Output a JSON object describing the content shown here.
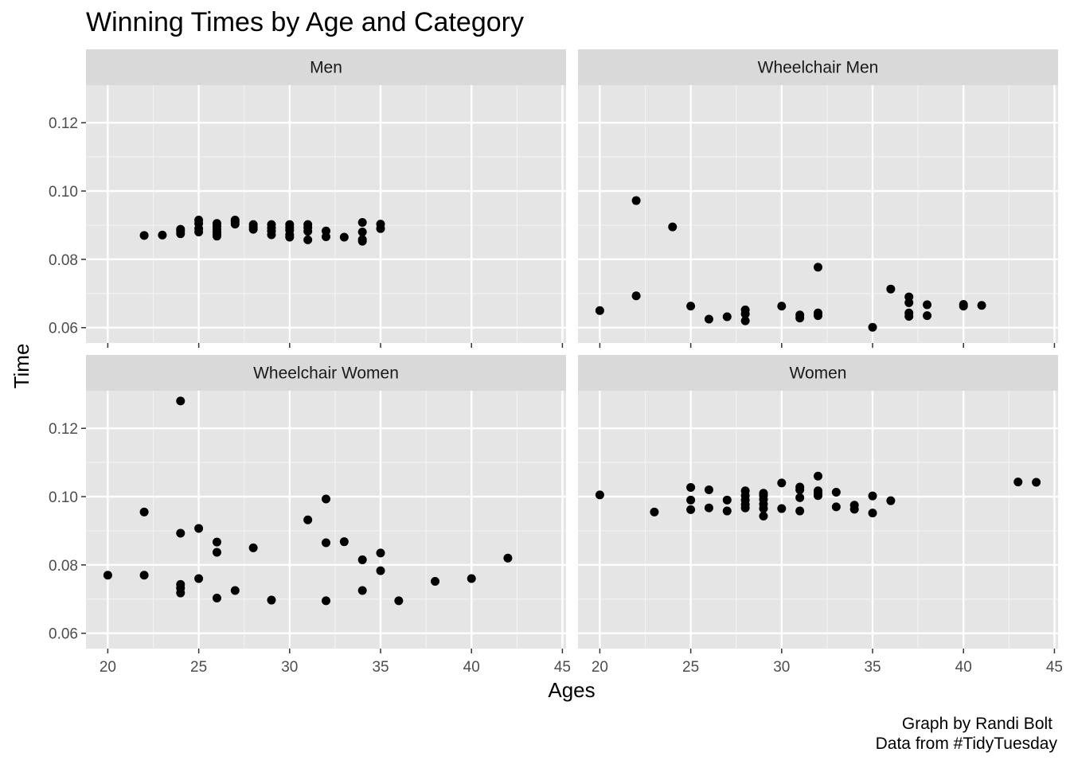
{
  "chart_data": {
    "type": "scatter",
    "title": "Winning Times by Age and Category",
    "xlabel": "Ages",
    "ylabel": "Time",
    "xlim": [
      18.8,
      45.2
    ],
    "ylim": [
      0.0555,
      0.131
    ],
    "x_ticks": [
      20,
      25,
      30,
      35,
      40,
      45
    ],
    "y_ticks": [
      0.06,
      0.08,
      0.1,
      0.12
    ],
    "y_tick_labels": [
      "0.06",
      "0.08",
      "0.10",
      "0.12"
    ],
    "grid": true,
    "point_color": "#000000",
    "panel_background": "#e5e5e5",
    "strip_background": "#d9d9d9",
    "caption": [
      "Graph by Randi Bolt",
      "Data from #TidyTuesday"
    ],
    "panels": [
      {
        "name": "Men",
        "points": [
          [
            22,
            0.087
          ],
          [
            23,
            0.0871
          ],
          [
            24,
            0.0875
          ],
          [
            24,
            0.0882
          ],
          [
            24,
            0.0888
          ],
          [
            25,
            0.088
          ],
          [
            25,
            0.089
          ],
          [
            25,
            0.0905
          ],
          [
            25,
            0.0915
          ],
          [
            26,
            0.0868
          ],
          [
            26,
            0.0873
          ],
          [
            26,
            0.088
          ],
          [
            26,
            0.0888
          ],
          [
            26,
            0.0897
          ],
          [
            26,
            0.0905
          ],
          [
            27,
            0.0903
          ],
          [
            27,
            0.091
          ],
          [
            27,
            0.0915
          ],
          [
            28,
            0.0888
          ],
          [
            28,
            0.0895
          ],
          [
            28,
            0.0902
          ],
          [
            29,
            0.0872
          ],
          [
            29,
            0.0883
          ],
          [
            29,
            0.0892
          ],
          [
            29,
            0.0902
          ],
          [
            30,
            0.0865
          ],
          [
            30,
            0.0872
          ],
          [
            30,
            0.0885
          ],
          [
            30,
            0.0893
          ],
          [
            30,
            0.0902
          ],
          [
            31,
            0.0857
          ],
          [
            31,
            0.0882
          ],
          [
            31,
            0.0893
          ],
          [
            31,
            0.0902
          ],
          [
            32,
            0.0866
          ],
          [
            32,
            0.0883
          ],
          [
            33,
            0.0865
          ],
          [
            34,
            0.0853
          ],
          [
            34,
            0.0858
          ],
          [
            34,
            0.088
          ],
          [
            34,
            0.0908
          ],
          [
            35,
            0.089
          ],
          [
            35,
            0.0903
          ]
        ]
      },
      {
        "name": "Wheelchair Men",
        "points": [
          [
            20,
            0.065
          ],
          [
            22,
            0.0972
          ],
          [
            22,
            0.0693
          ],
          [
            24,
            0.0895
          ],
          [
            25,
            0.0663
          ],
          [
            26,
            0.0625
          ],
          [
            27,
            0.0632
          ],
          [
            28,
            0.062
          ],
          [
            28,
            0.064
          ],
          [
            28,
            0.0652
          ],
          [
            30,
            0.0663
          ],
          [
            31,
            0.0628
          ],
          [
            31,
            0.0637
          ],
          [
            32,
            0.0635
          ],
          [
            32,
            0.0643
          ],
          [
            32,
            0.0777
          ],
          [
            35,
            0.0601
          ],
          [
            36,
            0.0713
          ],
          [
            37,
            0.0633
          ],
          [
            37,
            0.0643
          ],
          [
            37,
            0.0673
          ],
          [
            37,
            0.069
          ],
          [
            38,
            0.0635
          ],
          [
            38,
            0.0667
          ],
          [
            40,
            0.0663
          ],
          [
            40,
            0.0668
          ],
          [
            41,
            0.0665
          ]
        ]
      },
      {
        "name": "Wheelchair Women",
        "points": [
          [
            20,
            0.077
          ],
          [
            22,
            0.0955
          ],
          [
            22,
            0.077
          ],
          [
            24,
            0.128
          ],
          [
            24,
            0.0893
          ],
          [
            24,
            0.0743
          ],
          [
            24,
            0.0732
          ],
          [
            24,
            0.0718
          ],
          [
            25,
            0.0907
          ],
          [
            25,
            0.076
          ],
          [
            26,
            0.0867
          ],
          [
            26,
            0.0837
          ],
          [
            26,
            0.0703
          ],
          [
            27,
            0.0725
          ],
          [
            28,
            0.085
          ],
          [
            29,
            0.0697
          ],
          [
            31,
            0.0932
          ],
          [
            32,
            0.0993
          ],
          [
            32,
            0.0865
          ],
          [
            32,
            0.0695
          ],
          [
            33,
            0.0868
          ],
          [
            34,
            0.0815
          ],
          [
            34,
            0.0725
          ],
          [
            35,
            0.0835
          ],
          [
            35,
            0.0783
          ],
          [
            36,
            0.0695
          ],
          [
            38,
            0.0752
          ],
          [
            40,
            0.076
          ],
          [
            42,
            0.082
          ]
        ]
      },
      {
        "name": "Women",
        "points": [
          [
            20,
            0.1005
          ],
          [
            23,
            0.0955
          ],
          [
            25,
            0.0962
          ],
          [
            25,
            0.099
          ],
          [
            25,
            0.1027
          ],
          [
            26,
            0.0967
          ],
          [
            26,
            0.102
          ],
          [
            27,
            0.0958
          ],
          [
            27,
            0.099
          ],
          [
            28,
            0.0967
          ],
          [
            28,
            0.0977
          ],
          [
            28,
            0.099
          ],
          [
            28,
            0.1003
          ],
          [
            28,
            0.1017
          ],
          [
            29,
            0.0943
          ],
          [
            29,
            0.0965
          ],
          [
            29,
            0.0978
          ],
          [
            29,
            0.0992
          ],
          [
            29,
            0.1003
          ],
          [
            29,
            0.101
          ],
          [
            30,
            0.0965
          ],
          [
            30,
            0.104
          ],
          [
            31,
            0.0958
          ],
          [
            31,
            0.0997
          ],
          [
            31,
            0.102
          ],
          [
            31,
            0.1028
          ],
          [
            32,
            0.1003
          ],
          [
            32,
            0.101
          ],
          [
            32,
            0.1017
          ],
          [
            32,
            0.106
          ],
          [
            33,
            0.097
          ],
          [
            33,
            0.1013
          ],
          [
            34,
            0.0963
          ],
          [
            34,
            0.0975
          ],
          [
            35,
            0.0952
          ],
          [
            35,
            0.1002
          ],
          [
            36,
            0.0988
          ],
          [
            43,
            0.1043
          ],
          [
            44,
            0.1042
          ]
        ]
      }
    ]
  }
}
